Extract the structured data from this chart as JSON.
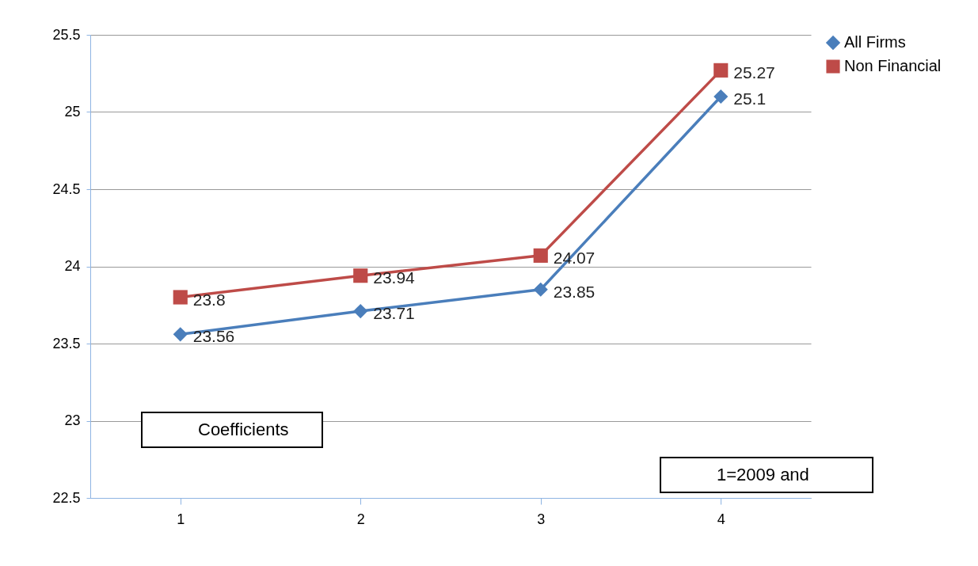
{
  "chart_data": {
    "type": "line",
    "categories": [
      "1",
      "2",
      "3",
      "4"
    ],
    "series": [
      {
        "name": "All Firms",
        "color": "#4a7ebb",
        "marker": "diamond",
        "values": [
          23.56,
          23.71,
          23.85,
          25.1
        ]
      },
      {
        "name": "Non Financial",
        "color": "#be4b48",
        "marker": "square",
        "values": [
          23.8,
          23.94,
          24.07,
          25.27
        ]
      }
    ],
    "ylim": [
      22.5,
      25.5
    ],
    "yticks": [
      22.5,
      23,
      23.5,
      24,
      24.5,
      25,
      25.5
    ],
    "grid": "y",
    "legend": "right",
    "data_labels": true,
    "annotations": [
      "Coefficients",
      "1=2009 and"
    ]
  }
}
